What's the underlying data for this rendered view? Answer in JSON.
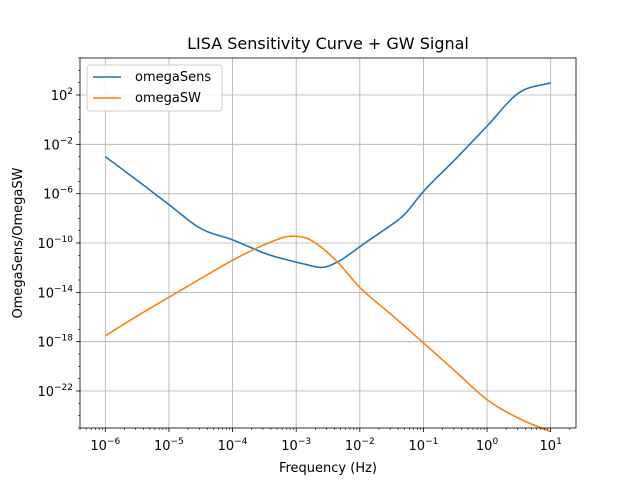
{
  "chart_data": {
    "type": "line",
    "title": "LISA Sensitivity Curve + GW Signal",
    "xlabel": "Frequency (Hz)",
    "ylabel": "OmegaSens/OmegaSW",
    "xscale": "log",
    "yscale": "log",
    "xlim": [
      4e-07,
      25
    ],
    "ylim": [
      1e-25,
      100000.0
    ],
    "xticks": [
      {
        "base": "10",
        "exp": "−6"
      },
      {
        "base": "10",
        "exp": "−5"
      },
      {
        "base": "10",
        "exp": "−4"
      },
      {
        "base": "10",
        "exp": "−3"
      },
      {
        "base": "10",
        "exp": "−2"
      },
      {
        "base": "10",
        "exp": "−1"
      },
      {
        "base": "10",
        "exp": "0"
      },
      {
        "base": "10",
        "exp": "1"
      }
    ],
    "yticks": [
      {
        "base": "10",
        "exp": "−22"
      },
      {
        "base": "10",
        "exp": "−18"
      },
      {
        "base": "10",
        "exp": "−14"
      },
      {
        "base": "10",
        "exp": "−10"
      },
      {
        "base": "10",
        "exp": "−6"
      },
      {
        "base": "10",
        "exp": "−2"
      },
      {
        "base": "10",
        "exp": "2"
      }
    ],
    "grid": true,
    "legend_position": "upper-left",
    "series": [
      {
        "name": "omegaSens",
        "color": "#1f77b4",
        "x": [
          1e-06,
          3.16e-06,
          1e-05,
          3.16e-05,
          0.0001,
          0.0002,
          0.000316,
          0.0005,
          0.0007,
          0.001,
          0.0015,
          0.002,
          0.0025,
          0.003,
          0.004,
          0.005,
          0.007,
          0.01,
          0.02,
          0.0316,
          0.05,
          0.1,
          0.316,
          1,
          3.16,
          10
        ],
        "y": [
          0.001,
          1.2e-05,
          1.3e-07,
          1.5e-09,
          1.8e-10,
          4e-11,
          1.5e-11,
          7e-12,
          4.5e-12,
          2.8e-12,
          1.7e-12,
          1.2e-12,
          1.05e-12,
          1.2e-12,
          2.2e-12,
          4e-12,
          1.3e-11,
          5e-11,
          6e-10,
          3e-09,
          2e-08,
          1.5e-06,
          0.0006,
          0.3,
          150,
          1000.0
        ]
      },
      {
        "name": "omegaSW",
        "color": "#ff7f0e",
        "x": [
          1e-06,
          3.16e-06,
          1e-05,
          3.16e-05,
          0.0001,
          0.0002,
          0.0004,
          0.0007,
          0.001,
          0.0015,
          0.002,
          0.003,
          0.005,
          0.01,
          0.0316,
          0.1,
          0.316,
          1,
          3.16,
          10
        ],
        "y": [
          3e-18,
          1.2e-16,
          4e-15,
          1.3e-13,
          4e-12,
          2.5e-11,
          1.2e-10,
          3.2e-10,
          3.5e-10,
          2.3e-10,
          1e-10,
          2e-11,
          1.5e-12,
          2.5e-14,
          1.5e-16,
          8e-19,
          4e-21,
          2e-23,
          6e-25,
          5e-26
        ]
      }
    ]
  }
}
